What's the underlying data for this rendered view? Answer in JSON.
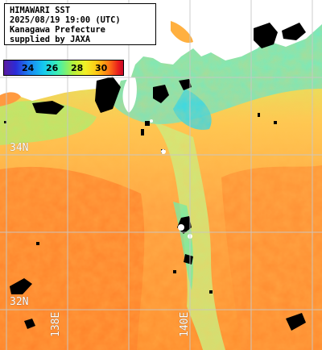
{
  "header": {
    "lines": [
      "HIMAWARI SST",
      "2025/08/19 19:00 (UTC)",
      "Kanagawa Prefecture",
      "supplied by JAXA"
    ]
  },
  "colorbar": {
    "ticks": [
      "24",
      "26",
      "28",
      "30"
    ]
  },
  "grid": {
    "latitudes": [
      "34N",
      "32N"
    ],
    "longitudes": [
      "138E",
      "140E"
    ]
  },
  "colors": {
    "land": "#ffffff",
    "cloud": "#000000",
    "grid_line": "#c8c8c8",
    "warm": "#ff8c28",
    "cool": "#40f0c8"
  }
}
